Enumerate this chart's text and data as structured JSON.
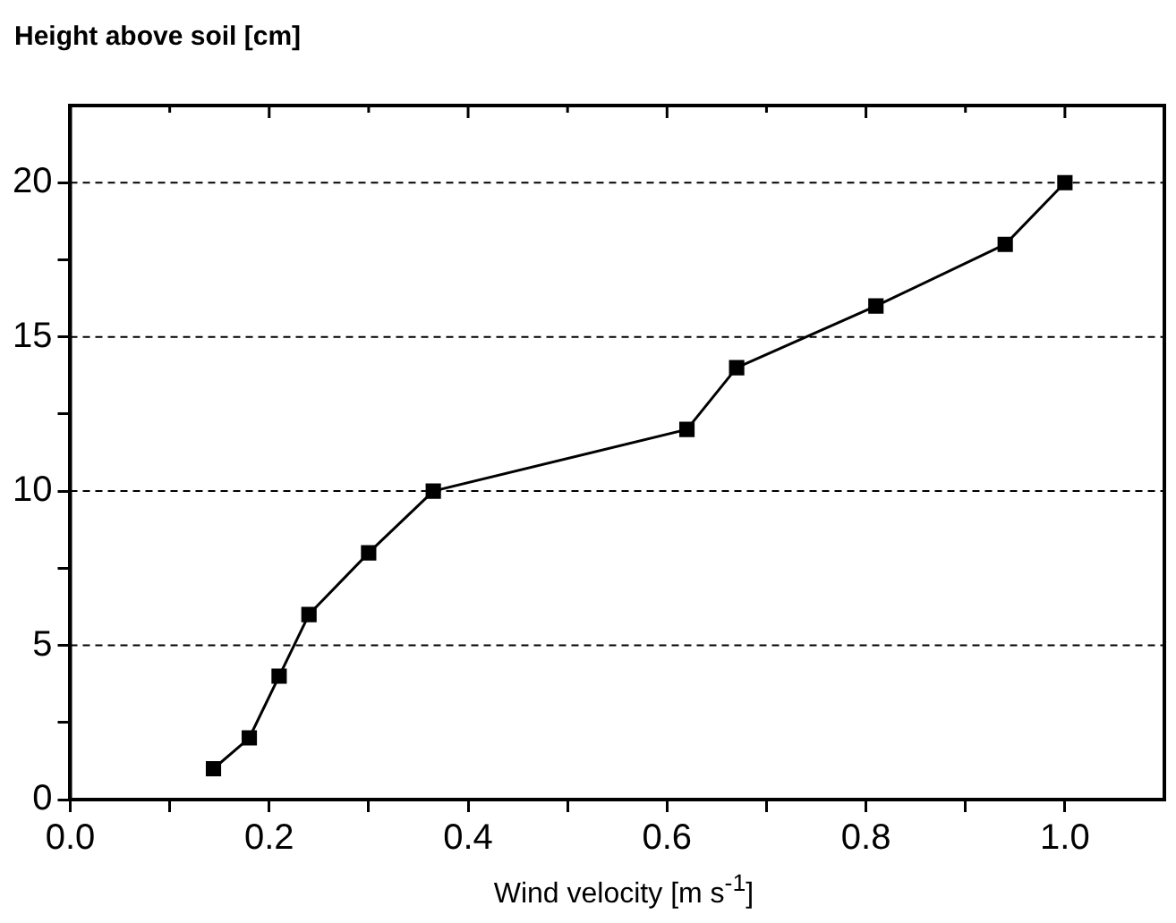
{
  "chart_data": {
    "type": "line",
    "xlabel": "Wind velocity [m s$^{-1}$]",
    "ylabel": "Height above soil [cm]",
    "x": [
      0.144,
      0.18,
      0.21,
      0.24,
      0.3,
      0.365,
      0.62,
      0.67,
      0.81,
      0.94,
      1.0
    ],
    "series": [
      {
        "color": "#000000",
        "values": [
          1,
          2,
          4,
          6,
          8,
          10,
          12,
          14,
          16,
          18,
          20
        ]
      }
    ],
    "xlim": [
      0,
      1.1
    ],
    "ylim": [
      0,
      22.5
    ],
    "xticks": [
      {
        "value": 0,
        "label": "0.0"
      },
      {
        "value": 0.1,
        "label": null
      },
      {
        "value": 0.2,
        "label": "0.2"
      },
      {
        "value": 0.3,
        "label": null
      },
      {
        "value": 0.4,
        "label": "0.4"
      },
      {
        "value": 0.5,
        "label": null
      },
      {
        "value": 0.6,
        "label": "0.6"
      },
      {
        "value": 0.7,
        "label": null
      },
      {
        "value": 0.8,
        "label": "0.8"
      },
      {
        "value": 0.9,
        "label": null
      },
      {
        "value": 1.0,
        "label": "1.0"
      }
    ],
    "yticks": [
      0,
      {
        "value": 2.5,
        "label": null
      },
      5,
      {
        "value": 7.5,
        "label": null
      },
      10,
      {
        "value": 12.5,
        "label": null
      },
      15,
      {
        "value": 17.5,
        "label": null
      },
      20
    ],
    "grid": "y",
    "legend": false,
    "marker": "square",
    "line_style": "solid"
  }
}
